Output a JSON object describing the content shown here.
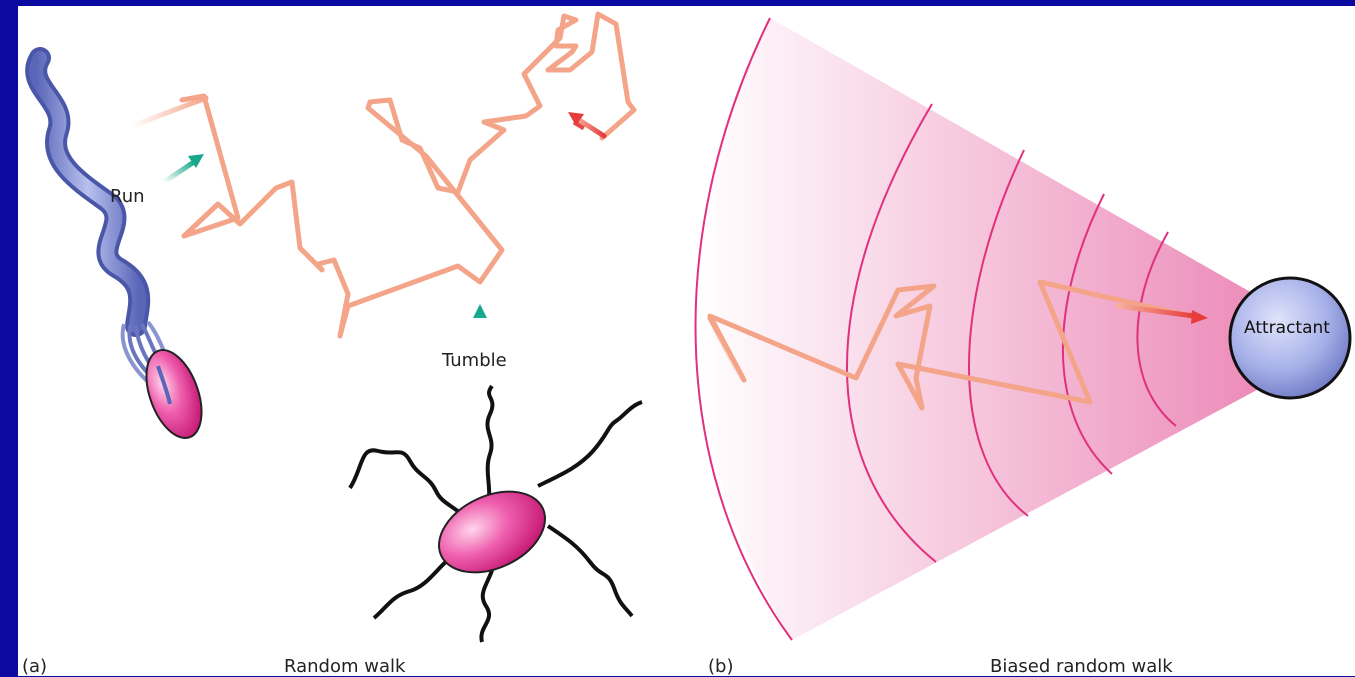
{
  "panel_a": {
    "letter": "(a)",
    "caption": "Random walk",
    "run_label": "Run",
    "tumble_label": "Tumble"
  },
  "panel_b": {
    "letter": "(b)",
    "caption": "Biased random walk",
    "attractant_label": "Attractant"
  },
  "colors": {
    "background": "#0a0aa0",
    "path": "#f4a488",
    "arrow_teal": "#1aa88c",
    "arrow_red": "#e84a4a",
    "cell_magenta": "#e0338f",
    "flagella_blue": "#7f8cd0",
    "gradient_lines": "#e0307e",
    "attractant_fill": "#9aa6e4"
  }
}
